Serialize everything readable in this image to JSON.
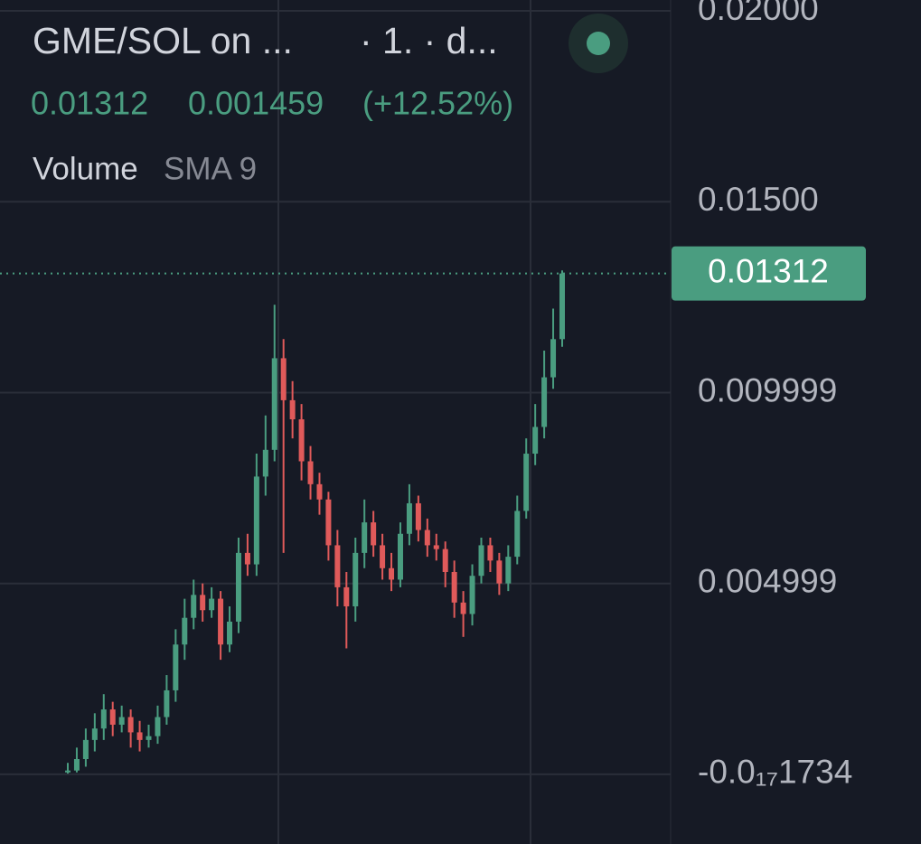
{
  "chart_data": {
    "type": "candlestick",
    "title": "GME/SOL on ...",
    "interval": "· 1. · d...",
    "last_price": 0.01312,
    "change": 0.001459,
    "change_percent": "(+12.52%)",
    "indicator": "Volume",
    "indicator_params": "SMA 9",
    "ylim": [
      -0.001825,
      0.020284
    ],
    "yticks": [
      {
        "value": 0.02,
        "label": "0.02000"
      },
      {
        "value": 0.015,
        "label": "0.01500"
      },
      0.009999,
      0.004999,
      {
        "value": -1.734e-19,
        "label": "-0.0₁₇1734"
      }
    ],
    "grid": true,
    "up_color": "#4a9d80",
    "down_color": "#e05a5a",
    "open": [
      5e-05,
      0.0001,
      0.0004,
      0.0009,
      0.0012,
      0.0017,
      0.0013,
      0.0015,
      0.0011,
      0.0009,
      0.001,
      0.0015,
      0.0022,
      0.0034,
      0.0041,
      0.0047,
      0.0043,
      0.0046,
      0.0034,
      0.004,
      0.0058,
      0.0055,
      0.0078,
      0.0085,
      0.0109,
      0.0098,
      0.0093,
      0.0082,
      0.0076,
      0.0072,
      0.006,
      0.0049,
      0.0044,
      0.0058,
      0.0066,
      0.006,
      0.0054,
      0.0051,
      0.0063,
      0.0071,
      0.0064,
      0.006,
      0.0059,
      0.0053,
      0.0045,
      0.0042,
      0.0052,
      0.006,
      0.0056,
      0.005,
      0.0057,
      0.0069,
      0.0084,
      0.0091,
      0.0104,
      0.0114
    ],
    "high": [
      0.0003,
      0.0007,
      0.0012,
      0.0016,
      0.0021,
      0.0019,
      0.0018,
      0.0017,
      0.0014,
      0.0013,
      0.0018,
      0.0026,
      0.0038,
      0.0046,
      0.0051,
      0.005,
      0.0049,
      0.0048,
      0.0044,
      0.0062,
      0.0063,
      0.0084,
      0.0094,
      0.0123,
      0.0114,
      0.0103,
      0.0097,
      0.0086,
      0.0079,
      0.0074,
      0.0064,
      0.0053,
      0.0062,
      0.0072,
      0.0069,
      0.0063,
      0.0058,
      0.0066,
      0.0076,
      0.0073,
      0.0067,
      0.0063,
      0.0061,
      0.0056,
      0.0048,
      0.0055,
      0.0062,
      0.0062,
      0.0058,
      0.006,
      0.0073,
      0.0088,
      0.0097,
      0.0111,
      0.0122,
      0.0132
    ],
    "low": [
      2e-05,
      5e-05,
      0.0002,
      0.0006,
      0.0009,
      0.001,
      0.0011,
      0.0007,
      0.0006,
      0.0007,
      0.0008,
      0.0013,
      0.0019,
      0.003,
      0.0038,
      0.004,
      0.0041,
      0.003,
      0.0032,
      0.0037,
      0.0052,
      0.0052,
      0.0073,
      0.0082,
      0.0058,
      0.0088,
      0.0077,
      0.0072,
      0.0068,
      0.0056,
      0.0044,
      0.0033,
      0.004,
      0.0054,
      0.0057,
      0.0051,
      0.0048,
      0.0049,
      0.006,
      0.0061,
      0.0057,
      0.0056,
      0.0049,
      0.0041,
      0.0036,
      0.0039,
      0.005,
      0.0053,
      0.0047,
      0.0048,
      0.0055,
      0.0067,
      0.0081,
      0.0088,
      0.0101,
      0.0112
    ],
    "close": [
      0.0001,
      0.0004,
      0.0009,
      0.0012,
      0.0017,
      0.0013,
      0.0015,
      0.0011,
      0.0009,
      0.001,
      0.0015,
      0.0022,
      0.0034,
      0.0041,
      0.0047,
      0.0043,
      0.0046,
      0.0034,
      0.004,
      0.0058,
      0.0055,
      0.0078,
      0.0085,
      0.0109,
      0.0098,
      0.0093,
      0.0082,
      0.0076,
      0.0072,
      0.006,
      0.0049,
      0.0044,
      0.0058,
      0.0066,
      0.006,
      0.0054,
      0.0051,
      0.0063,
      0.0071,
      0.0064,
      0.006,
      0.0059,
      0.0053,
      0.0045,
      0.0042,
      0.0052,
      0.006,
      0.0056,
      0.005,
      0.0057,
      0.0069,
      0.0084,
      0.0091,
      0.0104,
      0.0114,
      0.01312
    ]
  }
}
